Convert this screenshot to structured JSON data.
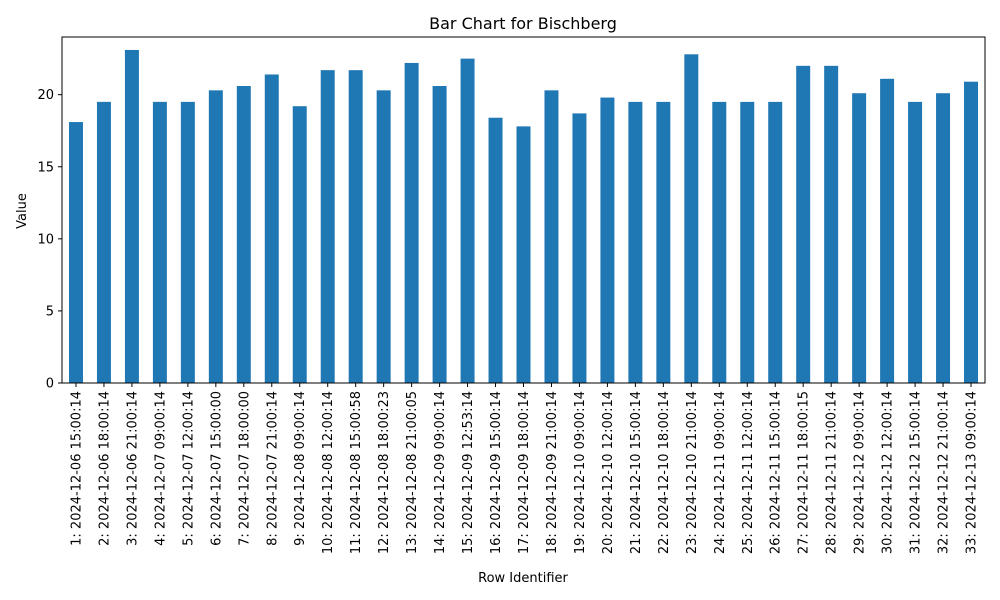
{
  "chart_data": {
    "type": "bar",
    "title": "Bar Chart for Bischberg",
    "xlabel": "Row Identifier",
    "ylabel": "Value",
    "ylim": [
      0,
      24
    ],
    "yticks": [
      0,
      5,
      10,
      15,
      20
    ],
    "grid": false,
    "bar_color": "#1f77b4",
    "categories": [
      "1: 2024-12-06 15:00:14",
      "2: 2024-12-06 18:00:14",
      "3: 2024-12-06 21:00:14",
      "4: 2024-12-07 09:00:14",
      "5: 2024-12-07 12:00:14",
      "6: 2024-12-07 15:00:00",
      "7: 2024-12-07 18:00:00",
      "8: 2024-12-07 21:00:14",
      "9: 2024-12-08 09:00:14",
      "10: 2024-12-08 12:00:14",
      "11: 2024-12-08 15:00:58",
      "12: 2024-12-08 18:00:23",
      "13: 2024-12-08 21:00:05",
      "14: 2024-12-09 09:00:14",
      "15: 2024-12-09 12:53:14",
      "16: 2024-12-09 15:00:14",
      "17: 2024-12-09 18:00:14",
      "18: 2024-12-09 21:00:14",
      "19: 2024-12-10 09:00:14",
      "20: 2024-12-10 12:00:14",
      "21: 2024-12-10 15:00:14",
      "22: 2024-12-10 18:00:14",
      "23: 2024-12-10 21:00:14",
      "24: 2024-12-11 09:00:14",
      "25: 2024-12-11 12:00:14",
      "26: 2024-12-11 15:00:14",
      "27: 2024-12-11 18:00:15",
      "28: 2024-12-11 21:00:14",
      "29: 2024-12-12 09:00:14",
      "30: 2024-12-12 12:00:14",
      "31: 2024-12-12 15:00:14",
      "32: 2024-12-12 21:00:14",
      "33: 2024-12-13 09:00:14"
    ],
    "values": [
      18.1,
      19.5,
      23.1,
      19.5,
      19.5,
      20.3,
      20.6,
      21.4,
      19.2,
      21.7,
      21.7,
      20.3,
      22.2,
      20.6,
      22.5,
      18.4,
      17.8,
      20.3,
      18.7,
      19.8,
      19.5,
      19.5,
      22.8,
      19.5,
      19.5,
      19.5,
      22.0,
      22.0,
      20.1,
      21.1,
      19.5,
      20.1,
      20.9
    ]
  }
}
